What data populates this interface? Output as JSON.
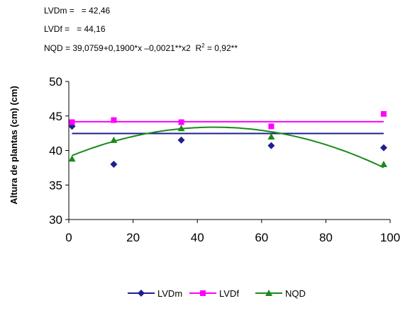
{
  "equations": {
    "lvdm": "LVDm =   = 42,46",
    "lvdf": "LVDf =   = 44,16",
    "nqd_main": "NQD = 39,0759+0,1900*x –0,0021**x2  R",
    "nqd_sup": "2",
    "nqd_tail": " = 0,92**"
  },
  "chart_data": {
    "type": "scatter",
    "ylabel": "Altura de plantas (cm)  (cm)",
    "xlabel": "",
    "xlim": [
      0,
      100
    ],
    "ylim": [
      30,
      50
    ],
    "xticks": [
      0,
      20,
      40,
      60,
      80,
      100
    ],
    "yticks": [
      30,
      35,
      40,
      45,
      50
    ],
    "grid": false,
    "legend_position": "bottom",
    "series": [
      {
        "name": "LVDm",
        "color": "#1f1f8f",
        "marker": "diamond",
        "points": [
          [
            1,
            43.5
          ],
          [
            14,
            38.0
          ],
          [
            35,
            41.5
          ],
          [
            63,
            40.7
          ],
          [
            98,
            40.4
          ]
        ],
        "fit": [
          [
            1,
            42.46
          ],
          [
            98,
            42.46
          ]
        ]
      },
      {
        "name": "LVDf",
        "color": "#ff00ff",
        "marker": "square",
        "points": [
          [
            1,
            44.1
          ],
          [
            14,
            44.4
          ],
          [
            35,
            44.1
          ],
          [
            63,
            43.5
          ],
          [
            98,
            45.3
          ]
        ],
        "fit": [
          [
            1,
            44.16
          ],
          [
            98,
            44.16
          ]
        ]
      },
      {
        "name": "NQD",
        "color": "#1a8a1a",
        "marker": "triangle",
        "points": [
          [
            1,
            38.8
          ],
          [
            14,
            41.5
          ],
          [
            35,
            43.2
          ],
          [
            63,
            42.0
          ],
          [
            98,
            38.0
          ]
        ],
        "fit_coeffs": [
          39.0759,
          0.19,
          -0.0021
        ],
        "fit_range": [
          1,
          98
        ]
      }
    ]
  }
}
